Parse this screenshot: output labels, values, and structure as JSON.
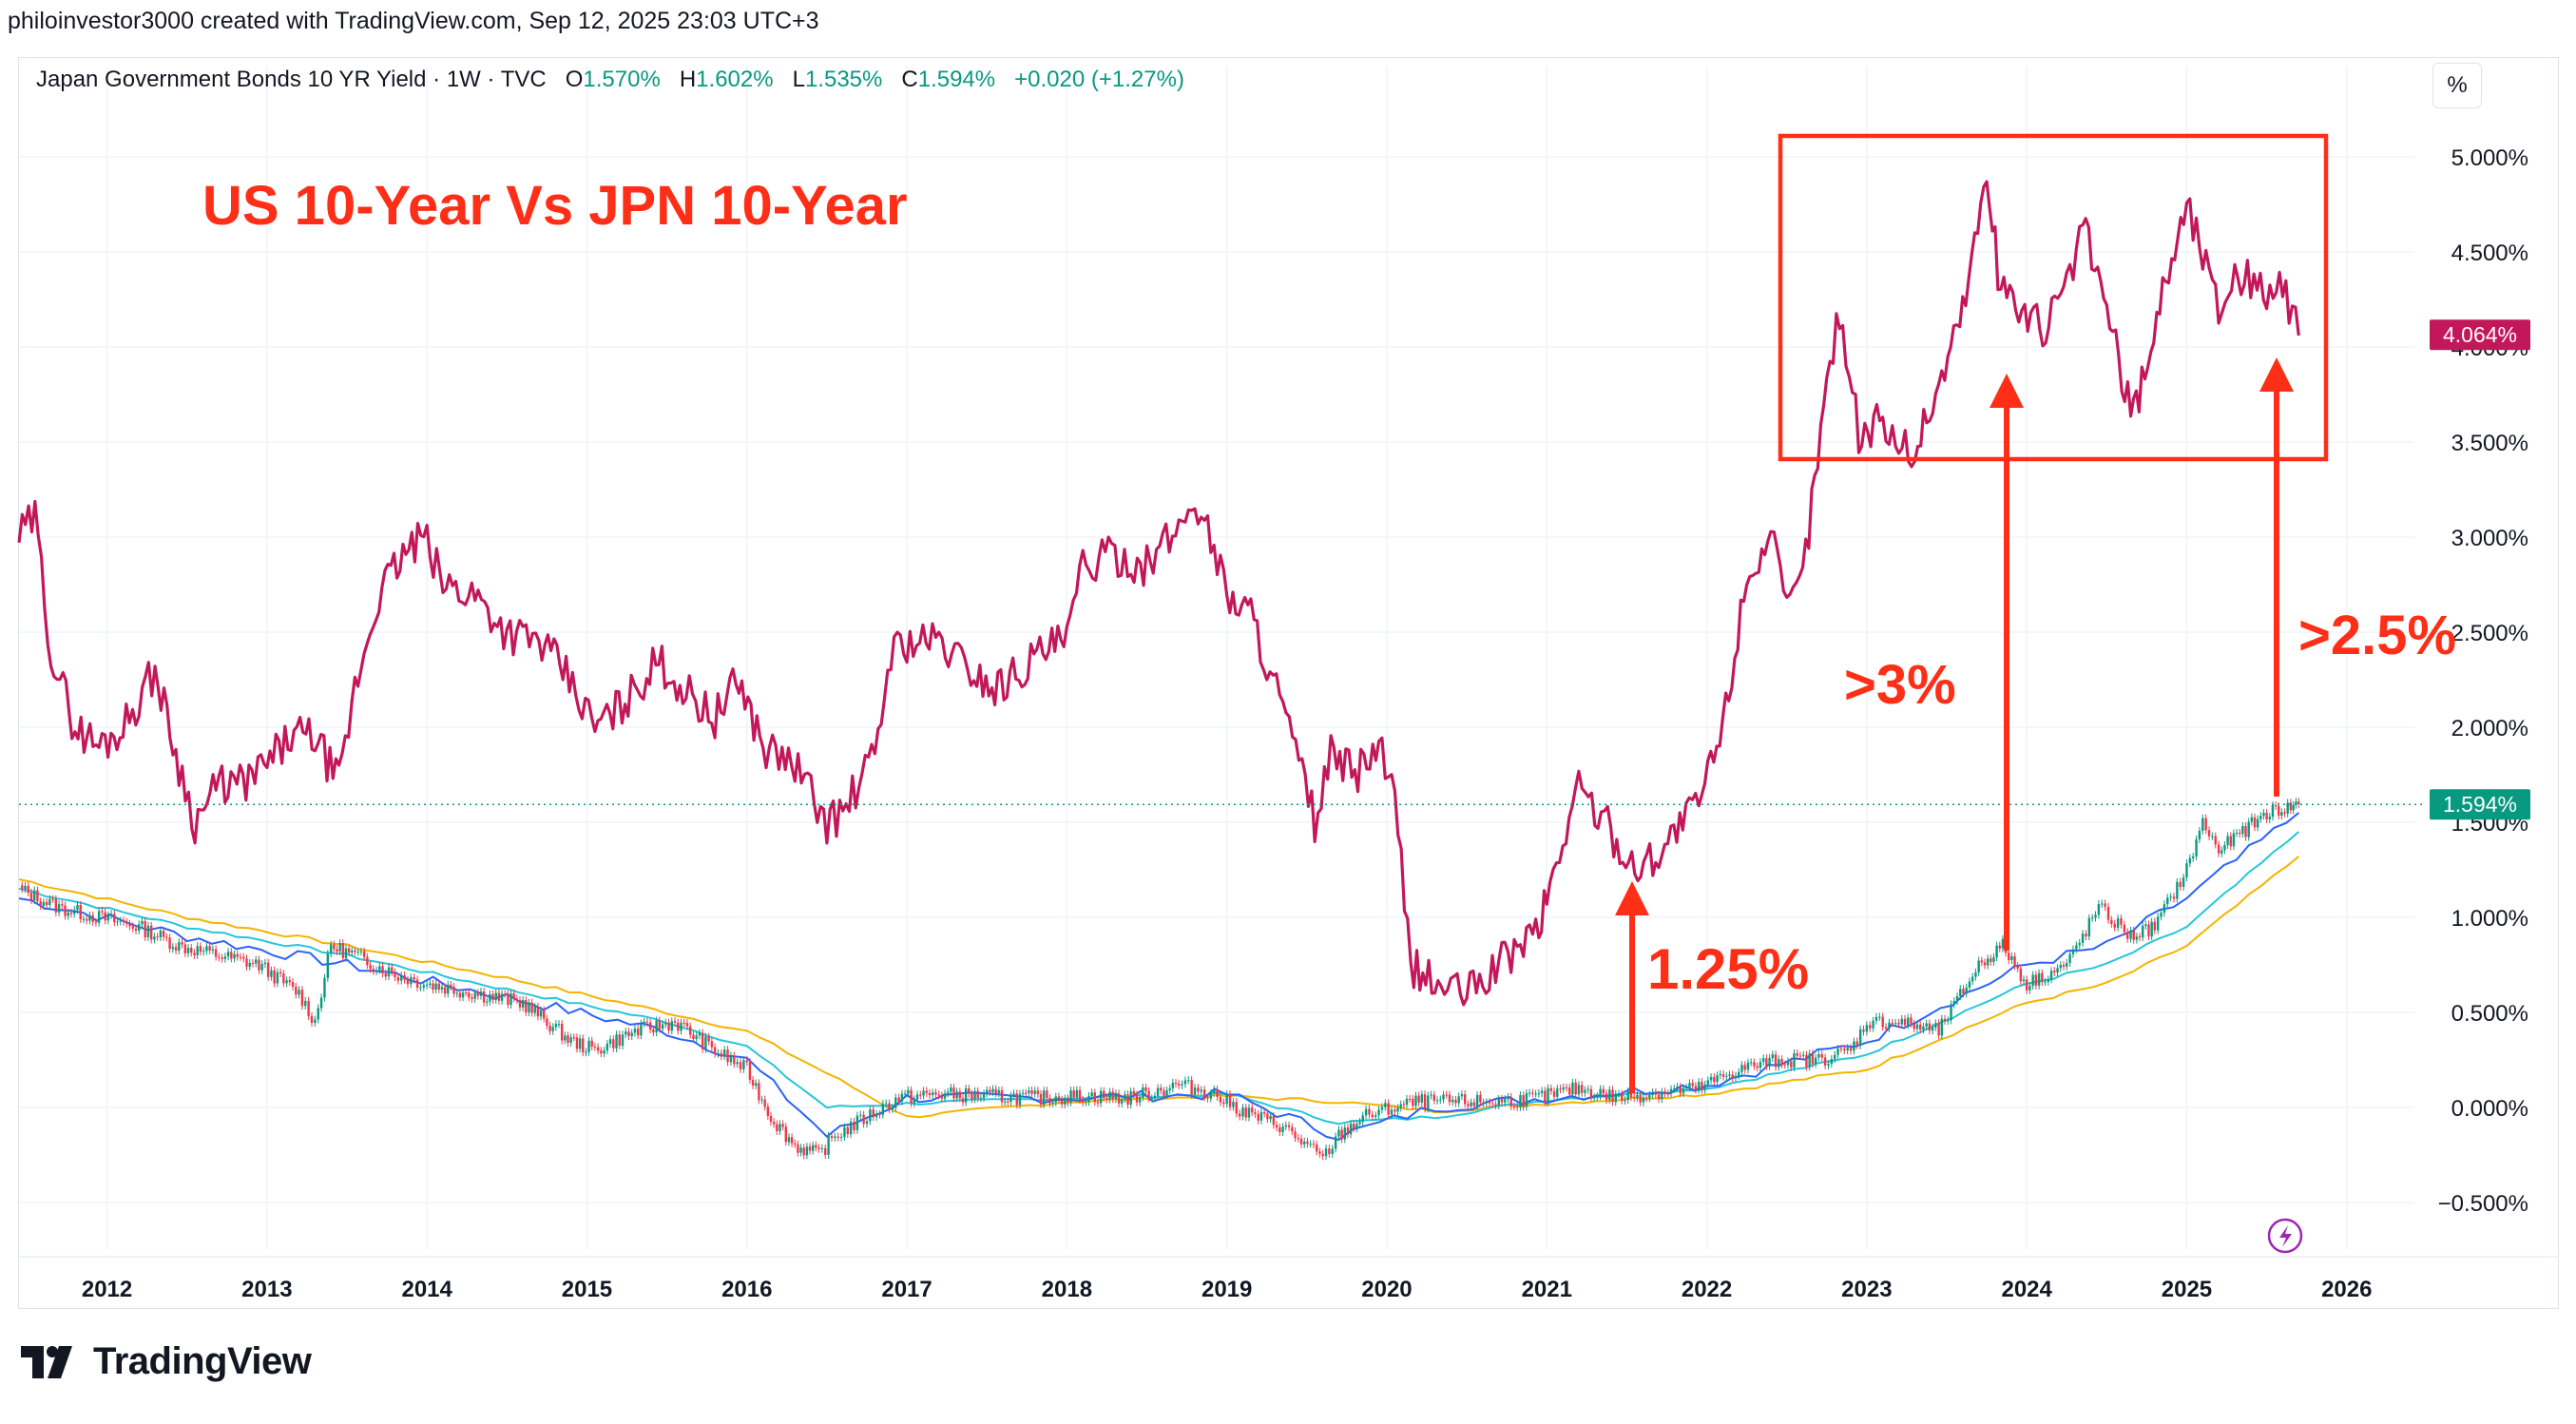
{
  "header": {
    "attribution": "philoinvestor3000 created with TradingView.com, Sep 12, 2025 23:03 UTC+3"
  },
  "legend": {
    "symbol": "Japan Government Bonds 10 YR Yield · 1W · TVC",
    "o_label": "O",
    "o_value": "1.570%",
    "h_label": "H",
    "h_value": "1.602%",
    "l_label": "L",
    "l_value": "1.535%",
    "c_label": "C",
    "c_value": "1.594%",
    "change": "+0.020 (+1.27%)"
  },
  "scale_button": "%",
  "footer": {
    "brand": "TradingView"
  },
  "chart_data": {
    "type": "line",
    "annotations": {
      "title": "US 10-Year Vs JPN 10-Year",
      "labels": [
        "1.25%",
        ">3%",
        ">2.5%"
      ]
    },
    "x_ticks": [
      "2012",
      "2013",
      "2014",
      "2015",
      "2016",
      "2017",
      "2018",
      "2019",
      "2020",
      "2021",
      "2022",
      "2023",
      "2024",
      "2025",
      "2026"
    ],
    "y_ticks": [
      "5.000%",
      "4.500%",
      "4.000%",
      "3.500%",
      "3.000%",
      "2.500%",
      "2.000%",
      "1.500%",
      "1.000%",
      "0.500%",
      "0.000%",
      "−0.500%"
    ],
    "ylim": [
      -0.55,
      5.1
    ],
    "xlim": [
      2011.45,
      2026.5
    ],
    "grid": true,
    "price_labels": [
      {
        "series": "us10y",
        "text": "4.064%",
        "value": 4.064,
        "color": "#c2185b"
      },
      {
        "series": "jp10y",
        "text": "1.594%",
        "value": 1.594,
        "color": "#089981"
      }
    ],
    "colors": {
      "us_line": "#c2185b",
      "candle_up": "#089981",
      "candle_down": "#f23645",
      "ma_blue": "#2962ff",
      "ma_cyan": "#26c6da",
      "ma_orange": "#f5b400",
      "annotation": "#ff2e17"
    },
    "series": [
      {
        "name": "",
        "id": "us10y",
        "x": [
          2011.45,
          2011.55,
          2011.65,
          2011.8,
          2011.95,
          2012.1,
          2012.3,
          2012.45,
          2012.55,
          2012.7,
          2012.85,
          2013.0,
          2013.15,
          2013.3,
          2013.45,
          2013.55,
          2013.7,
          2013.85,
          2013.98,
          2014.1,
          2014.3,
          2014.5,
          2014.7,
          2014.85,
          2015.05,
          2015.2,
          2015.45,
          2015.6,
          2015.8,
          2015.95,
          2016.1,
          2016.3,
          2016.5,
          2016.6,
          2016.8,
          2016.9,
          2017.0,
          2017.2,
          2017.4,
          2017.55,
          2017.7,
          2017.85,
          2018.0,
          2018.1,
          2018.3,
          2018.5,
          2018.7,
          2018.8,
          2018.9,
          2019.0,
          2019.15,
          2019.35,
          2019.55,
          2019.65,
          2019.8,
          2019.95,
          2020.05,
          2020.15,
          2020.3,
          2020.5,
          2020.7,
          2020.95,
          2021.0,
          2021.2,
          2021.4,
          2021.55,
          2021.7,
          2021.85,
          2021.95,
          2022.1,
          2022.25,
          2022.4,
          2022.5,
          2022.6,
          2022.75,
          2022.83,
          2022.95,
          2023.1,
          2023.2,
          2023.3,
          2023.45,
          2023.6,
          2023.75,
          2023.82,
          2023.95,
          2024.1,
          2024.25,
          2024.35,
          2024.5,
          2024.65,
          2024.72,
          2024.85,
          2025.0,
          2025.1,
          2025.2,
          2025.3,
          2025.4,
          2025.5,
          2025.6,
          2025.7
        ],
        "values": [
          3.0,
          3.1,
          2.4,
          2.0,
          1.9,
          2.0,
          2.3,
          1.8,
          1.5,
          1.7,
          1.7,
          1.8,
          1.95,
          1.95,
          1.7,
          2.2,
          2.7,
          2.9,
          3.0,
          2.75,
          2.7,
          2.5,
          2.45,
          2.3,
          2.0,
          2.1,
          2.35,
          2.2,
          2.05,
          2.25,
          1.9,
          1.8,
          1.5,
          1.55,
          1.85,
          2.4,
          2.45,
          2.45,
          2.3,
          2.2,
          2.3,
          2.4,
          2.45,
          2.85,
          2.9,
          2.85,
          3.05,
          3.2,
          3.0,
          2.7,
          2.6,
          2.1,
          1.5,
          1.85,
          1.75,
          1.9,
          1.6,
          0.75,
          0.65,
          0.6,
          0.75,
          0.95,
          1.1,
          1.7,
          1.45,
          1.25,
          1.35,
          1.5,
          1.6,
          2.0,
          2.8,
          3.0,
          2.6,
          2.8,
          3.8,
          4.2,
          3.55,
          3.6,
          3.5,
          3.45,
          3.8,
          4.2,
          4.9,
          4.4,
          4.2,
          4.1,
          4.3,
          4.65,
          4.2,
          3.65,
          3.8,
          4.3,
          4.75,
          4.5,
          4.2,
          4.4,
          4.35,
          4.3,
          4.3,
          4.06
        ]
      },
      {
        "name": "",
        "id": "jp10y",
        "x": [
          2011.45,
          2011.7,
          2011.95,
          2012.2,
          2012.45,
          2012.7,
          2012.95,
          2013.2,
          2013.3,
          2013.4,
          2013.55,
          2013.8,
          2014.0,
          2014.3,
          2014.6,
          2014.9,
          2015.05,
          2015.3,
          2015.55,
          2015.8,
          2016.0,
          2016.15,
          2016.3,
          2016.45,
          2016.55,
          2016.75,
          2016.95,
          2017.2,
          2017.5,
          2017.8,
          2018.1,
          2018.4,
          2018.7,
          2018.9,
          2019.1,
          2019.35,
          2019.6,
          2019.7,
          2019.85,
          2020.05,
          2020.2,
          2020.45,
          2020.7,
          2020.95,
          2021.2,
          2021.45,
          2021.7,
          2021.95,
          2022.2,
          2022.45,
          2022.7,
          2022.9,
          2023.0,
          2023.2,
          2023.45,
          2023.7,
          2023.85,
          2024.0,
          2024.25,
          2024.45,
          2024.65,
          2024.8,
          2025.0,
          2025.1,
          2025.2,
          2025.35,
          2025.5,
          2025.65,
          2025.7
        ],
        "values": [
          1.15,
          1.05,
          1.0,
          0.95,
          0.85,
          0.8,
          0.75,
          0.6,
          0.45,
          0.85,
          0.8,
          0.7,
          0.65,
          0.6,
          0.55,
          0.35,
          0.3,
          0.4,
          0.45,
          0.3,
          0.2,
          -0.05,
          -0.2,
          -0.25,
          -0.15,
          -0.05,
          0.05,
          0.07,
          0.06,
          0.05,
          0.06,
          0.05,
          0.12,
          0.08,
          -0.02,
          -0.1,
          -0.27,
          -0.15,
          -0.05,
          0.0,
          0.03,
          0.03,
          0.03,
          0.05,
          0.1,
          0.05,
          0.08,
          0.1,
          0.2,
          0.25,
          0.25,
          0.3,
          0.45,
          0.45,
          0.4,
          0.75,
          0.85,
          0.65,
          0.75,
          1.05,
          0.9,
          0.95,
          1.25,
          1.5,
          1.35,
          1.45,
          1.55,
          1.58,
          1.594
        ]
      },
      {
        "name": "",
        "id": "ma_blue",
        "x": [
          2011.45,
          2012.5,
          2013.5,
          2014.5,
          2015.5,
          2016.0,
          2016.5,
          2017.0,
          2018.0,
          2019.0,
          2019.7,
          2020.3,
          2021.0,
          2022.0,
          2023.0,
          2024.0,
          2024.5,
          2025.0,
          2025.7
        ],
        "values": [
          1.1,
          0.9,
          0.75,
          0.58,
          0.4,
          0.25,
          -0.15,
          0.05,
          0.05,
          0.07,
          -0.15,
          0.0,
          0.05,
          0.12,
          0.35,
          0.75,
          0.85,
          1.1,
          1.55
        ]
      },
      {
        "name": "",
        "id": "ma_cyan",
        "x": [
          2011.45,
          2012.5,
          2013.5,
          2014.5,
          2015.5,
          2016.0,
          2016.5,
          2017.0,
          2018.0,
          2019.0,
          2019.7,
          2020.3,
          2021.0,
          2022.0,
          2023.0,
          2024.0,
          2024.5,
          2025.0,
          2025.7
        ],
        "values": [
          1.15,
          0.95,
          0.8,
          0.62,
          0.45,
          0.32,
          0.0,
          0.02,
          0.05,
          0.07,
          -0.08,
          -0.05,
          0.04,
          0.1,
          0.28,
          0.65,
          0.75,
          0.95,
          1.45
        ]
      },
      {
        "name": "",
        "id": "ma_orange",
        "x": [
          2011.45,
          2012.5,
          2013.5,
          2014.5,
          2015.5,
          2016.0,
          2016.5,
          2017.0,
          2018.0,
          2019.0,
          2019.7,
          2020.3,
          2021.0,
          2022.0,
          2023.0,
          2024.0,
          2024.5,
          2025.0,
          2025.7
        ],
        "values": [
          1.2,
          1.0,
          0.85,
          0.68,
          0.5,
          0.4,
          0.18,
          -0.05,
          0.03,
          0.06,
          0.03,
          -0.02,
          0.02,
          0.07,
          0.2,
          0.55,
          0.65,
          0.85,
          1.32
        ]
      }
    ]
  }
}
